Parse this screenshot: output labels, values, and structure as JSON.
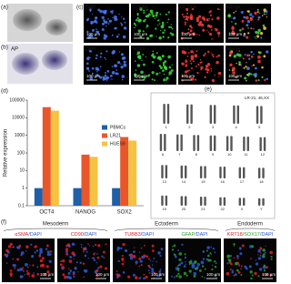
{
  "panel_labels": [
    "(a)",
    "(b)",
    "(c)",
    "(d)",
    "(e)",
    "(f)"
  ],
  "panel_b": {
    "label": "AP"
  },
  "panel_c": {
    "images": [
      {
        "label": "DAPI",
        "color": "#4a7bff",
        "scale": "100 μm"
      },
      {
        "label": "SSEA4",
        "color": "#3ddc3d",
        "scale": "100 μm"
      },
      {
        "label": "OCT3/4",
        "color": "#ff3b3b",
        "scale": "100 μm"
      },
      {
        "label": "Merge",
        "color": "#ffffff",
        "scale": "100 μm"
      },
      {
        "label": "DAPI",
        "color": "#4a7bff",
        "scale": "100 μm"
      },
      {
        "label": "SOX2",
        "color": "#3ddc3d",
        "scale": "100 μm"
      },
      {
        "label": "TRA-1-60",
        "color": "#ff3b3b",
        "scale": "100 μm"
      },
      {
        "label": "Merge",
        "color": "#ffffff",
        "scale": "100 μm"
      }
    ]
  },
  "chart_data": {
    "type": "bar",
    "y_label": "Relative expression",
    "log_scale": true,
    "categories": [
      "OCT4",
      "NANOG",
      "SOX2"
    ],
    "series": [
      {
        "name": "PBMCs",
        "color": "#1f5fa8",
        "values": [
          1,
          1,
          1
        ]
      },
      {
        "name": "LR21",
        "color": "#e8562a",
        "values": [
          40000,
          80,
          800
        ]
      },
      {
        "name": "HUES9",
        "color": "#f5c242",
        "values": [
          25000,
          60,
          500
        ]
      }
    ],
    "ylim": [
      0.1,
      100000
    ],
    "yticks": [
      0.1,
      1,
      10,
      100,
      1000,
      10000,
      100000
    ]
  },
  "panel_e": {
    "title": "LR-21, 46,XX",
    "chromosomes": [
      "1",
      "2",
      "3",
      "4",
      "5",
      "6",
      "7",
      "8",
      "9",
      "10",
      "11",
      "12",
      "13",
      "14",
      "15",
      "16",
      "17",
      "18",
      "19",
      "20",
      "21",
      "22",
      "X",
      "Y"
    ]
  },
  "panel_f": {
    "groups": [
      "Mesoderm",
      "Ectoderm",
      "Endoderm"
    ],
    "images": [
      {
        "parts": [
          "αSMA",
          "/DAPI"
        ],
        "colors": [
          "#e0202a",
          "#2a5bd7"
        ],
        "scale": "100 μm"
      },
      {
        "parts": [
          "CD90",
          "/DAPI"
        ],
        "colors": [
          "#e0202a",
          "#2a5bd7"
        ],
        "scale": "100 μm"
      },
      {
        "parts": [
          "TUBB3",
          "/DAPI"
        ],
        "colors": [
          "#e0202a",
          "#2a5bd7"
        ],
        "scale": "100 μm"
      },
      {
        "parts": [
          "GFAP",
          "/DAPI"
        ],
        "colors": [
          "#2aa02a",
          "#2a5bd7"
        ],
        "scale": "100 μm"
      },
      {
        "parts": [
          "KRT18",
          "/SOX17",
          "/DAPI"
        ],
        "colors": [
          "#e0202a",
          "#2aa02a",
          "#2a5bd7"
        ],
        "scale": "100 μm"
      }
    ]
  }
}
